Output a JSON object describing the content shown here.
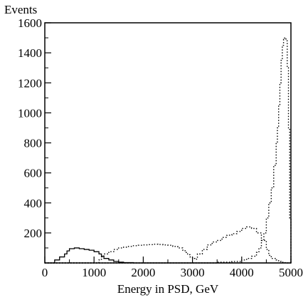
{
  "chart_data": {
    "type": "line",
    "title": "",
    "xlabel": "Energy in PSD, GeV",
    "ylabel": "Events",
    "xlim": [
      0,
      5000
    ],
    "ylim": [
      0,
      1600
    ],
    "grid": false,
    "legend": "none",
    "x_ticks": [
      0,
      1000,
      2000,
      3000,
      4000,
      5000
    ],
    "x_tick_labels": [
      "0",
      "1000",
      "2000",
      "3000",
      "4000",
      "5000"
    ],
    "y_ticks": [
      200,
      400,
      600,
      800,
      1000,
      1200,
      1400,
      1600
    ],
    "y_tick_labels": [
      "200",
      "400",
      "600",
      "800",
      "1000",
      "1200",
      "1400",
      "1600"
    ],
    "series": [
      {
        "style": "solid",
        "color": "#000000",
        "x": [
          0,
          200,
          300,
          400,
          450,
          500,
          600,
          700,
          800,
          900,
          1000,
          1100,
          1150,
          1200,
          1300,
          1400,
          1500,
          1600,
          1800,
          2000,
          5000
        ],
        "y": [
          0,
          20,
          40,
          60,
          80,
          95,
          100,
          95,
          90,
          85,
          75,
          60,
          45,
          30,
          20,
          10,
          5,
          2,
          0,
          0,
          0
        ]
      },
      {
        "style": "dotted",
        "color": "#000000",
        "x": [
          0,
          1000,
          1100,
          1150,
          1200,
          1300,
          1400,
          1500,
          1600,
          1700,
          1800,
          1900,
          2000,
          2100,
          2200,
          2300,
          2400,
          2500,
          2600,
          2700,
          2800,
          2850,
          2900,
          2950,
          3000,
          3050,
          3100,
          3200,
          3300,
          3400,
          3500,
          3600,
          3700,
          3800,
          3900,
          4000,
          4100,
          4200,
          4300,
          4400,
          4500,
          4550,
          4600,
          4700,
          4750,
          4800,
          4850,
          4900,
          5000
        ],
        "y": [
          0,
          0,
          20,
          40,
          60,
          75,
          90,
          100,
          105,
          110,
          115,
          118,
          120,
          122,
          125,
          123,
          120,
          118,
          110,
          100,
          85,
          70,
          55,
          40,
          30,
          25,
          60,
          90,
          120,
          140,
          150,
          170,
          185,
          195,
          210,
          230,
          240,
          230,
          200,
          150,
          90,
          50,
          30,
          20,
          10,
          5,
          2,
          0,
          0
        ]
      },
      {
        "style": "dotted",
        "color": "#000000",
        "x": [
          0,
          3000,
          3500,
          3800,
          4000,
          4100,
          4200,
          4300,
          4350,
          4400,
          4450,
          4500,
          4550,
          4600,
          4650,
          4700,
          4725,
          4750,
          4775,
          4800,
          4825,
          4850,
          4875,
          4900,
          4925,
          4950,
          4975,
          5000
        ],
        "y": [
          0,
          0,
          5,
          10,
          20,
          30,
          45,
          70,
          100,
          150,
          200,
          300,
          400,
          500,
          650,
          800,
          900,
          1050,
          1200,
          1350,
          1450,
          1490,
          1500,
          1480,
          1300,
          900,
          300,
          0
        ]
      }
    ]
  }
}
